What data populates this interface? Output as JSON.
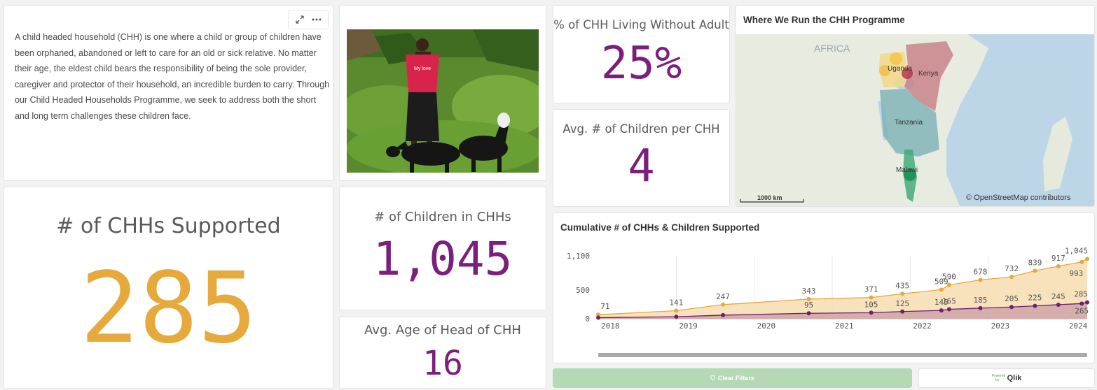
{
  "intro": {
    "text": "A child headed household (CHH) is one where a child or group of children have been orphaned, abandoned or left to care for an old or sick relative. No matter their age, the eldest child bears the responsibility of being the sole provider, caregiver and protector of their household, an incredible burden to carry. Through our Child Headed Households Programme, we seek to address both the short and long term challenges these children face."
  },
  "kpis": {
    "chhs_supported": {
      "title": "# of CHHs Supported",
      "value": "285"
    },
    "children_in_chhs": {
      "title": "# of Children in CHHs",
      "value": "1,045"
    },
    "avg_age": {
      "title": "Avg. Age of Head of CHH",
      "value": "16"
    },
    "pct_without_adult": {
      "title": "% of CHH Living Without Adult",
      "value": "25%"
    },
    "avg_children": {
      "title": "Avg. # of Children per CHH",
      "value": "4"
    }
  },
  "photo": {
    "shirt_text": "My love"
  },
  "map": {
    "title": "Where We Run the CHH Programme",
    "labels": {
      "continent": "AFRICA",
      "uganda": "Uganda",
      "kenya": "Kenya",
      "tanzania": "Tanzania",
      "malawi": "Malawi"
    },
    "scale": "1000 km",
    "attribution": "© OpenStreetMap contributors"
  },
  "chart_data": {
    "type": "area",
    "title": "Cumulative # of CHHs & Children Supported",
    "xlabel": "",
    "ylabel": "",
    "ylim": [
      0,
      1100
    ],
    "y_ticks": [
      0,
      500,
      1100
    ],
    "y_tick_labels": [
      "0",
      "500",
      "1,100"
    ],
    "x_ticks": [
      2018,
      2019,
      2020,
      2021,
      2022,
      2023,
      2024
    ],
    "x_range": [
      2018,
      2024.27
    ],
    "grid": true,
    "series": [
      {
        "color": "#e5a93c",
        "fill": "#f6ddb0",
        "points": [
          {
            "x": 2018.0,
            "y": 71,
            "label": "71"
          },
          {
            "x": 2019.0,
            "y": 141,
            "label": "141"
          },
          {
            "x": 2019.6,
            "y": 247,
            "label": "247"
          },
          {
            "x": 2020.7,
            "y": 343,
            "label": "343"
          },
          {
            "x": 2021.5,
            "y": 371,
            "label": "371"
          },
          {
            "x": 2021.9,
            "y": 435,
            "label": "435"
          },
          {
            "x": 2022.4,
            "y": 509,
            "label": "509"
          },
          {
            "x": 2022.5,
            "y": 590,
            "label": "590"
          },
          {
            "x": 2022.9,
            "y": 678,
            "label": "678"
          },
          {
            "x": 2023.3,
            "y": 732,
            "label": "732"
          },
          {
            "x": 2023.6,
            "y": 839,
            "label": "839"
          },
          {
            "x": 2023.9,
            "y": 917,
            "label": "917"
          },
          {
            "x": 2024.2,
            "y": 993,
            "label": "993"
          },
          {
            "x": 2024.27,
            "y": 1045,
            "label": "1,045"
          }
        ]
      },
      {
        "color": "#6e1f70",
        "fill": "#cfa5a8",
        "points": [
          {
            "x": 2018.0,
            "y": 18,
            "label": ""
          },
          {
            "x": 2019.0,
            "y": 35,
            "label": ""
          },
          {
            "x": 2019.6,
            "y": 62,
            "label": ""
          },
          {
            "x": 2020.7,
            "y": 95,
            "label": "95"
          },
          {
            "x": 2021.5,
            "y": 105,
            "label": "105"
          },
          {
            "x": 2021.9,
            "y": 125,
            "label": "125"
          },
          {
            "x": 2022.4,
            "y": 145,
            "label": "145"
          },
          {
            "x": 2022.5,
            "y": 165,
            "label": "165"
          },
          {
            "x": 2022.9,
            "y": 185,
            "label": "185"
          },
          {
            "x": 2023.3,
            "y": 205,
            "label": "205"
          },
          {
            "x": 2023.6,
            "y": 225,
            "label": "225"
          },
          {
            "x": 2023.9,
            "y": 245,
            "label": "245"
          },
          {
            "x": 2024.2,
            "y": 265,
            "label": "265"
          },
          {
            "x": 2024.27,
            "y": 285,
            "label": "285"
          }
        ]
      }
    ]
  },
  "footer": {
    "clear_filters": "Clear Filters",
    "powered_by": "Powered by",
    "qlik": "Qlik"
  }
}
